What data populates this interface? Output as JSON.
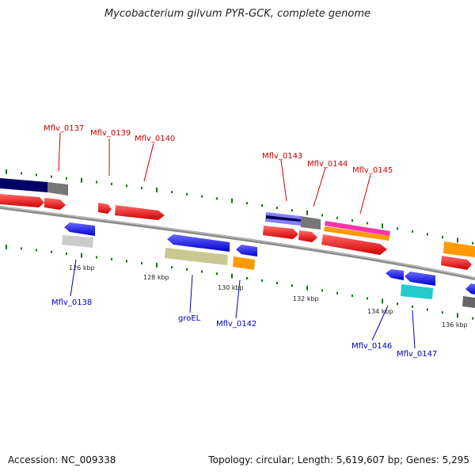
{
  "title": "Mycobacterium gilvum PYR-GCK, complete genome",
  "footer": {
    "accession": "Accession: NC_009338",
    "stats": "Topology: circular; Length: 5,619,607 bp; Genes: 5,295"
  },
  "colors": {
    "forward_label": "#cc0000",
    "reverse_label": "#0000bb",
    "backbone": "#808080",
    "dots": "#117711"
  },
  "tick_labels": [
    "126 kbp",
    "128 kbp",
    "130 kbp",
    "132 kbp",
    "134 kbp",
    "136 kbp"
  ],
  "gene_labels": [
    "Mflv_0137",
    "Mflv_0139",
    "Mflv_0140",
    "Mflv_0143",
    "Mflv_0144",
    "Mflv_0145",
    "Mflv_0138",
    "groEL",
    "Mflv_0142",
    "Mflv_0146",
    "Mflv_0147"
  ]
}
